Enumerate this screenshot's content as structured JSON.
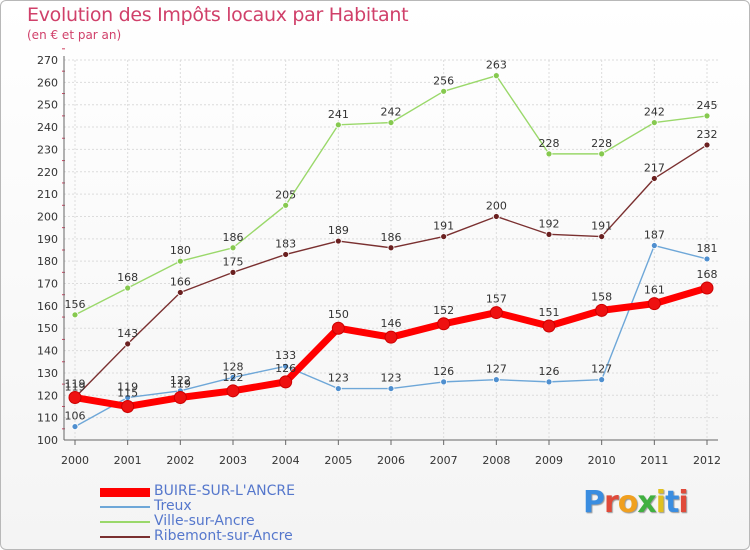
{
  "title": "Evolution des Impôts locaux par Habitant",
  "subtitle": "(en € et par an)",
  "logo_text": "Proxiti",
  "chart_data": {
    "type": "line",
    "title": "Evolution des Impôts locaux par Habitant",
    "subtitle": "(en € et par an)",
    "xlabel": "",
    "ylabel": "",
    "ylim": [
      100,
      270
    ],
    "grid": true,
    "legend_position": "bottom-left",
    "x": [
      "2000",
      "2001",
      "2002",
      "2003",
      "2004",
      "2005",
      "2006",
      "2007",
      "2008",
      "2009",
      "2010",
      "2011",
      "2012"
    ],
    "yticks": [
      "100",
      "110",
      "120",
      "130",
      "140",
      "150",
      "160",
      "170",
      "180",
      "190",
      "200",
      "210",
      "220",
      "230",
      "240",
      "250",
      "260",
      "270"
    ],
    "series": [
      {
        "name": "Ville-sur-Ancre",
        "color": "#9ad86a",
        "marker": "#86c94f",
        "values": [
          156,
          168,
          180,
          186,
          205,
          241,
          242,
          256,
          263,
          228,
          228,
          242,
          245
        ],
        "labels": [
          "156",
          "168",
          "180",
          "186",
          "205",
          "241",
          "242",
          "256",
          "263",
          "228",
          "228",
          "242",
          "245"
        ]
      },
      {
        "name": "Ribemont-sur-Ancre",
        "color": "#7a3030",
        "marker": "#6a2020",
        "values": [
          119,
          143,
          166,
          175,
          183,
          189,
          186,
          191,
          200,
          192,
          191,
          217,
          232
        ],
        "labels": [
          "119",
          "143",
          "166",
          "175",
          "183",
          "189",
          "186",
          "191",
          "200",
          "192",
          "191",
          "217",
          "232"
        ]
      },
      {
        "name": "Treux",
        "color": "#6ea7d8",
        "marker": "#4f8fcf",
        "values": [
          106,
          119,
          122,
          128,
          133,
          123,
          123,
          126,
          127,
          126,
          127,
          187,
          181
        ],
        "labels": [
          "106",
          "119",
          "122",
          "128",
          "133",
          "123",
          "123",
          "126",
          "127",
          "126",
          "127",
          "187",
          "181"
        ]
      },
      {
        "name": "BUIRE-SUR-L'ANCRE",
        "color": "#ff0000",
        "marker": "#ee1111",
        "values": [
          119,
          115,
          119,
          122,
          126,
          150,
          146,
          152,
          157,
          151,
          158,
          161,
          168
        ],
        "labels": [
          "119",
          "115",
          "119",
          "122",
          "126",
          "150",
          "146",
          "152",
          "157",
          "151",
          "158",
          "161",
          "168"
        ]
      }
    ]
  },
  "legend": [
    {
      "name": "BUIRE-SUR-L'ANCRE",
      "color": "#ff0000"
    },
    {
      "name": "Treux",
      "color": "#6ea7d8"
    },
    {
      "name": "Ville-sur-Ancre",
      "color": "#9ad86a"
    },
    {
      "name": "Ribemont-sur-Ancre",
      "color": "#7a3030"
    }
  ]
}
